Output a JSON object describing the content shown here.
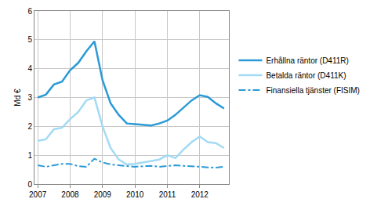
{
  "chart_data": {
    "type": "line",
    "y_label": "Md €",
    "x": [
      2007.0,
      2007.25,
      2007.5,
      2007.75,
      2008.0,
      2008.25,
      2008.5,
      2008.75,
      2009.0,
      2009.25,
      2009.5,
      2009.75,
      2010.0,
      2010.25,
      2010.5,
      2010.75,
      2011.0,
      2011.25,
      2011.5,
      2011.75,
      2012.0,
      2012.25,
      2012.5,
      2012.75
    ],
    "series": [
      {
        "name": "Erhållna räntor (D411R)",
        "color": "#2b9ad6",
        "line_style": "solid",
        "values": [
          3.0,
          3.1,
          3.45,
          3.55,
          3.95,
          4.2,
          4.6,
          4.95,
          3.6,
          2.8,
          2.4,
          2.1,
          2.08,
          2.05,
          2.03,
          2.1,
          2.2,
          2.4,
          2.65,
          2.9,
          3.08,
          3.02,
          2.8,
          2.62
        ]
      },
      {
        "name": "Betalda räntor (D411K)",
        "color": "#a3daf4",
        "line_style": "solid",
        "values": [
          1.5,
          1.55,
          1.9,
          1.95,
          2.25,
          2.5,
          2.9,
          3.0,
          2.0,
          1.25,
          0.85,
          0.68,
          0.7,
          0.75,
          0.8,
          0.85,
          1.0,
          0.9,
          1.2,
          1.45,
          1.65,
          1.45,
          1.42,
          1.25
        ]
      },
      {
        "name": "Finansiella tjänster (FISIM)",
        "color": "#2b9ad6",
        "line_style": "dashdot",
        "values": [
          0.65,
          0.6,
          0.65,
          0.7,
          0.7,
          0.62,
          0.6,
          0.88,
          0.75,
          0.68,
          0.65,
          0.62,
          0.6,
          0.62,
          0.63,
          0.6,
          0.62,
          0.65,
          0.63,
          0.62,
          0.6,
          0.58,
          0.57,
          0.6
        ]
      }
    ],
    "xlim": [
      2006.9,
      2012.9
    ],
    "xticks": [
      2007,
      2008,
      2009,
      2010,
      2011,
      2012
    ],
    "ylim": [
      0,
      6
    ],
    "yticks": [
      0,
      1,
      2,
      3,
      4,
      5,
      6
    ],
    "grid": true,
    "legend": "right"
  }
}
